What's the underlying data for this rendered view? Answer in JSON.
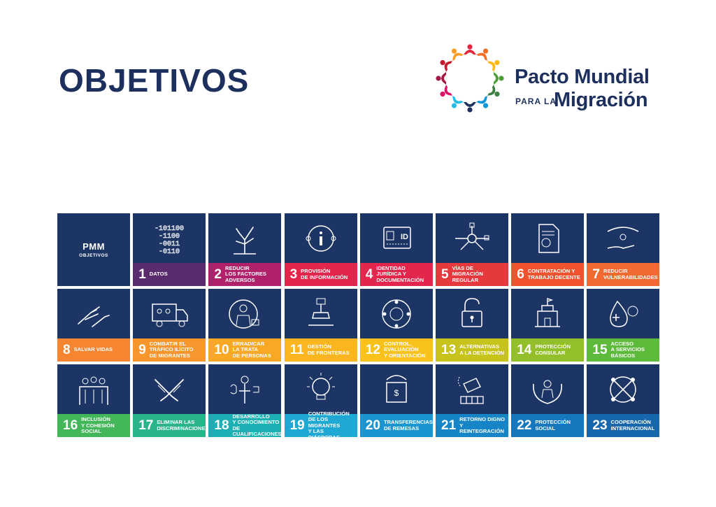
{
  "title": "OBJETIVOS",
  "logo": {
    "line1": "Pacto Mundial",
    "line2_small": "PARA LA",
    "line2_big": "Migración",
    "petal_colors": [
      "#e5243b",
      "#f36d25",
      "#fdb913",
      "#4c9f38",
      "#3f7e44",
      "#0a97d9",
      "#1d2f5c",
      "#26bde2",
      "#dd1367",
      "#a21942",
      "#c5192d",
      "#f99d26"
    ]
  },
  "pmm_tile": {
    "label": "PMM",
    "sub": "OBJETIVOS"
  },
  "objectives": [
    {
      "num": "1",
      "label": "DATOS",
      "color": "#5a2c6e",
      "icon": "binary-data-icon"
    },
    {
      "num": "2",
      "label": "REDUCIR\nLOS FACTORES\nADVERSOS",
      "color": "#b0206b",
      "icon": "dead-tree-icon"
    },
    {
      "num": "3",
      "label": "PROVISIÓN\nDE INFORMACIÓN",
      "color": "#e5264c",
      "icon": "information-icon"
    },
    {
      "num": "4",
      "label": "IDENTIDAD\nJURÍDICA Y\nDOCUMENTACIÓN",
      "color": "#e5264c",
      "icon": "id-card-icon"
    },
    {
      "num": "5",
      "label": "VÍAS DE\nMIGRACIÓN\nREGULAR",
      "color": "#e6393e",
      "icon": "pathways-icon"
    },
    {
      "num": "6",
      "label": "CONTRATACIÓN Y\nTRABAJO DECENTE",
      "color": "#f0532e",
      "icon": "contract-document-icon"
    },
    {
      "num": "7",
      "label": "REDUCIR\nVULNERABILIDADES",
      "color": "#f26a2f",
      "icon": "protecting-hands-icon"
    },
    {
      "num": "8",
      "label": "SALVAR VIDAS",
      "color": "#f58530",
      "icon": "reaching-hands-icon"
    },
    {
      "num": "9",
      "label": "COMBATIR EL\nTRÁFICO ILÍCITO\nDE MIGRANTES",
      "color": "#f7962c",
      "icon": "truck-icon"
    },
    {
      "num": "10",
      "label": "ERRADICAR\nLA TRATA\nDE PERSONAS",
      "color": "#f9a826",
      "icon": "person-stop-icon"
    },
    {
      "num": "11",
      "label": "GESTIÓN\nDE FRONTERAS",
      "color": "#fbb61f",
      "icon": "stamp-icon"
    },
    {
      "num": "12",
      "label": "CONTROL,\nEVALUACIÓN\nY ORIENTACIÓN",
      "color": "#f9c21a",
      "icon": "screening-circle-icon"
    },
    {
      "num": "13",
      "label": "ALTERNATIVAS\nA LA DETENCIÓN",
      "color": "#c8c21d",
      "icon": "padlock-icon"
    },
    {
      "num": "14",
      "label": "PROTECCIÓN\nCONSULAR",
      "color": "#93bf2a",
      "icon": "consulate-building-icon"
    },
    {
      "num": "15",
      "label": "ACCESO\nA SERVICIOS\nBÁSICOS",
      "color": "#5dba3b",
      "icon": "health-services-icon"
    },
    {
      "num": "16",
      "label": "INCLUSIÓN\nY COHESIÓN\nSOCIAL",
      "color": "#44b65a",
      "icon": "community-people-icon"
    },
    {
      "num": "17",
      "label": "ELIMINAR LAS\nDISCRIMINACIONES",
      "color": "#2bb38b",
      "icon": "crossed-hands-icon"
    },
    {
      "num": "18",
      "label": "DESARROLLO\nY CONOCIMIENTO\nDE CUALIFICACIONES",
      "color": "#1cb0b5",
      "icon": "skills-tools-icon"
    },
    {
      "num": "19",
      "label": "CONTRIBUCIÓN\nDE LOS MIGRANTES\nY LAS DIÁSPORAS",
      "color": "#1fa8d4",
      "icon": "lightbulb-icon"
    },
    {
      "num": "20",
      "label": "TRANSFERENCIAS\nDE REMESAS",
      "color": "#1a95d0",
      "icon": "remittance-globe-icon"
    },
    {
      "num": "21",
      "label": "RETORNO DIGNO\nY REINTEGRACIÓN",
      "color": "#1685c8",
      "icon": "return-suitcase-icon"
    },
    {
      "num": "22",
      "label": "PROTECCIÓN\nSOCIAL",
      "color": "#1577bd",
      "icon": "social-protection-icon"
    },
    {
      "num": "23",
      "label": "COOPERACIÓN\nINTERNACIONAL",
      "color": "#1667ae",
      "icon": "cooperation-icon"
    }
  ]
}
